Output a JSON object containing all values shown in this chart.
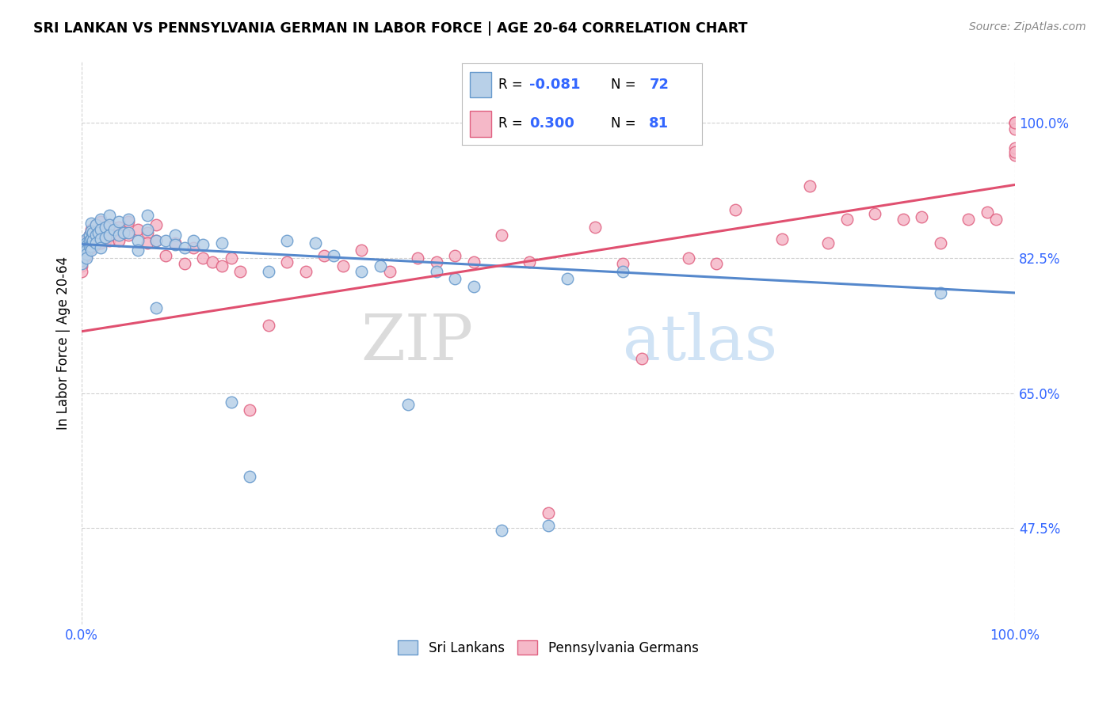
{
  "title": "SRI LANKAN VS PENNSYLVANIA GERMAN IN LABOR FORCE | AGE 20-64 CORRELATION CHART",
  "source": "Source: ZipAtlas.com",
  "ylabel": "In Labor Force | Age 20-64",
  "xlim": [
    0.0,
    1.0
  ],
  "ylim": [
    0.35,
    1.08
  ],
  "ytick_labels": [
    "47.5%",
    "65.0%",
    "82.5%",
    "100.0%"
  ],
  "ytick_values": [
    0.475,
    0.65,
    0.825,
    1.0
  ],
  "xtick_labels": [
    "0.0%",
    "100.0%"
  ],
  "xtick_values": [
    0.0,
    1.0
  ],
  "r_blue": -0.081,
  "n_blue": 72,
  "r_pink": 0.3,
  "n_pink": 81,
  "blue_fill": "#B8D0E8",
  "pink_fill": "#F5B8C8",
  "blue_edge": "#6699CC",
  "pink_edge": "#E06080",
  "blue_line": "#5588CC",
  "pink_line": "#E05070",
  "tick_color": "#3366FF",
  "watermark_color": "#DDEEFF",
  "blue_line_y0": 0.843,
  "blue_line_y1": 0.78,
  "pink_line_y0": 0.73,
  "pink_line_y1": 0.92,
  "blue_scatter_x": [
    0.0,
    0.0,
    0.0,
    0.0,
    0.0,
    0.0,
    0.0,
    0.005,
    0.005,
    0.005,
    0.005,
    0.005,
    0.005,
    0.008,
    0.008,
    0.008,
    0.01,
    0.01,
    0.01,
    0.01,
    0.01,
    0.012,
    0.012,
    0.015,
    0.015,
    0.015,
    0.018,
    0.02,
    0.02,
    0.02,
    0.02,
    0.025,
    0.025,
    0.03,
    0.03,
    0.03,
    0.035,
    0.04,
    0.04,
    0.045,
    0.05,
    0.05,
    0.06,
    0.06,
    0.07,
    0.07,
    0.08,
    0.08,
    0.09,
    0.1,
    0.1,
    0.11,
    0.12,
    0.13,
    0.15,
    0.16,
    0.18,
    0.2,
    0.22,
    0.25,
    0.27,
    0.3,
    0.32,
    0.35,
    0.38,
    0.4,
    0.42,
    0.45,
    0.5,
    0.52,
    0.58,
    0.92
  ],
  "blue_scatter_y": [
    0.842,
    0.838,
    0.835,
    0.832,
    0.828,
    0.822,
    0.818,
    0.85,
    0.845,
    0.84,
    0.835,
    0.83,
    0.825,
    0.855,
    0.848,
    0.84,
    0.87,
    0.86,
    0.85,
    0.84,
    0.835,
    0.858,
    0.848,
    0.868,
    0.855,
    0.845,
    0.858,
    0.875,
    0.862,
    0.85,
    0.838,
    0.865,
    0.852,
    0.88,
    0.868,
    0.855,
    0.862,
    0.872,
    0.855,
    0.858,
    0.875,
    0.858,
    0.848,
    0.835,
    0.88,
    0.862,
    0.848,
    0.76,
    0.848,
    0.855,
    0.842,
    0.838,
    0.848,
    0.842,
    0.845,
    0.638,
    0.542,
    0.808,
    0.848,
    0.845,
    0.828,
    0.808,
    0.815,
    0.635,
    0.808,
    0.798,
    0.788,
    0.472,
    0.478,
    0.798,
    0.808,
    0.78
  ],
  "pink_scatter_x": [
    0.0,
    0.0,
    0.0,
    0.0,
    0.005,
    0.005,
    0.005,
    0.008,
    0.008,
    0.01,
    0.01,
    0.01,
    0.015,
    0.015,
    0.015,
    0.018,
    0.02,
    0.02,
    0.02,
    0.025,
    0.025,
    0.03,
    0.03,
    0.035,
    0.04,
    0.04,
    0.05,
    0.05,
    0.06,
    0.07,
    0.07,
    0.08,
    0.08,
    0.09,
    0.1,
    0.11,
    0.12,
    0.13,
    0.14,
    0.15,
    0.16,
    0.17,
    0.18,
    0.2,
    0.22,
    0.24,
    0.26,
    0.28,
    0.3,
    0.33,
    0.36,
    0.38,
    0.4,
    0.42,
    0.45,
    0.48,
    0.5,
    0.55,
    0.58,
    0.6,
    0.65,
    0.68,
    0.7,
    0.75,
    0.78,
    0.8,
    0.82,
    0.85,
    0.88,
    0.9,
    0.92,
    0.95,
    0.97,
    0.98,
    1.0,
    1.0,
    1.0,
    1.0,
    1.0,
    1.0,
    1.0
  ],
  "pink_scatter_y": [
    0.828,
    0.822,
    0.815,
    0.808,
    0.848,
    0.838,
    0.828,
    0.855,
    0.845,
    0.862,
    0.848,
    0.838,
    0.868,
    0.855,
    0.842,
    0.858,
    0.872,
    0.858,
    0.845,
    0.862,
    0.848,
    0.868,
    0.848,
    0.855,
    0.865,
    0.848,
    0.872,
    0.855,
    0.862,
    0.858,
    0.845,
    0.868,
    0.848,
    0.828,
    0.845,
    0.818,
    0.838,
    0.825,
    0.82,
    0.815,
    0.825,
    0.808,
    0.628,
    0.738,
    0.82,
    0.808,
    0.828,
    0.815,
    0.835,
    0.808,
    0.825,
    0.82,
    0.828,
    0.82,
    0.855,
    0.82,
    0.495,
    0.865,
    0.818,
    0.695,
    0.825,
    0.818,
    0.888,
    0.85,
    0.918,
    0.845,
    0.875,
    0.882,
    0.875,
    0.878,
    0.845,
    0.875,
    0.885,
    0.875,
    1.0,
    1.0,
    0.958,
    0.992,
    0.968,
    1.0,
    0.962
  ]
}
